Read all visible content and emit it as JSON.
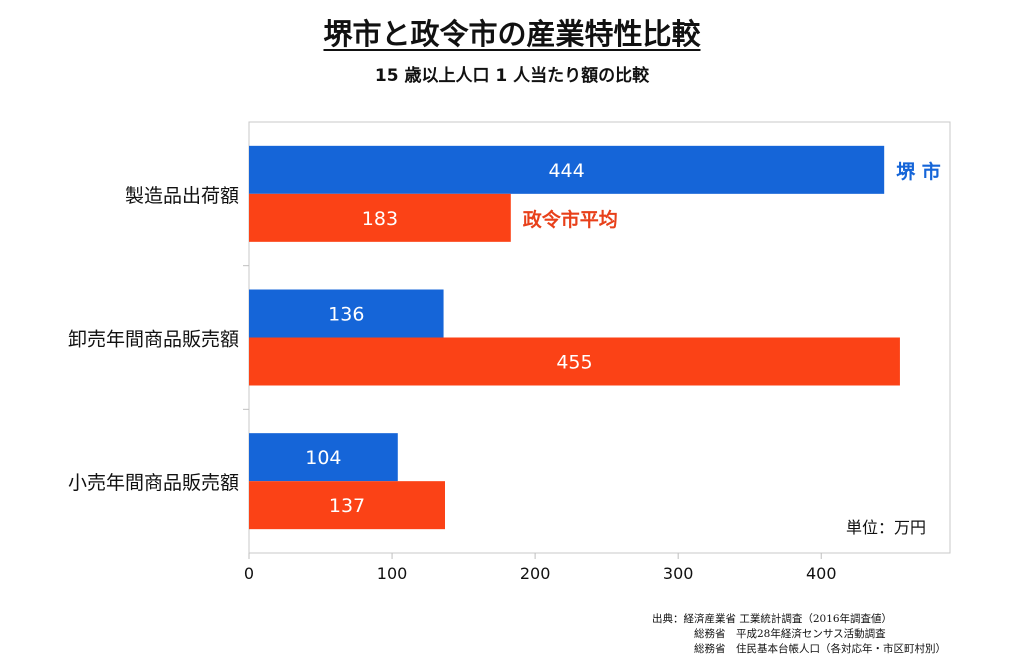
{
  "title": "堺市と政令市の産業特性比較",
  "subtitle": "15 歳以上人口 1 人当たり額の比較",
  "unit_note": "単位：万円",
  "source_lines": [
    "出典：経済産業省 工業統計調査（2016年調査値）",
    "総務省　平成28年経済センサス活動調査",
    "総務省　住民基本台帳人口（各対応年・市区町村別）"
  ],
  "colors": {
    "sakai": "#1565d8",
    "seirei": "#fb4216",
    "sakai_label": "#1565d8",
    "seirei_label": "#e8401a"
  },
  "chart_data": {
    "type": "bar",
    "orientation": "horizontal",
    "categories": [
      "製造品出荷額",
      "卸売年間商品販売額",
      "小売年間商品販売額"
    ],
    "series": [
      {
        "name": "堺 市",
        "values": [
          444,
          136,
          104
        ]
      },
      {
        "name": "政令市平均",
        "values": [
          183,
          455,
          137
        ]
      }
    ],
    "xlim": [
      0,
      490
    ],
    "xticks": [
      0,
      100,
      200,
      300,
      400
    ],
    "grid": false
  }
}
